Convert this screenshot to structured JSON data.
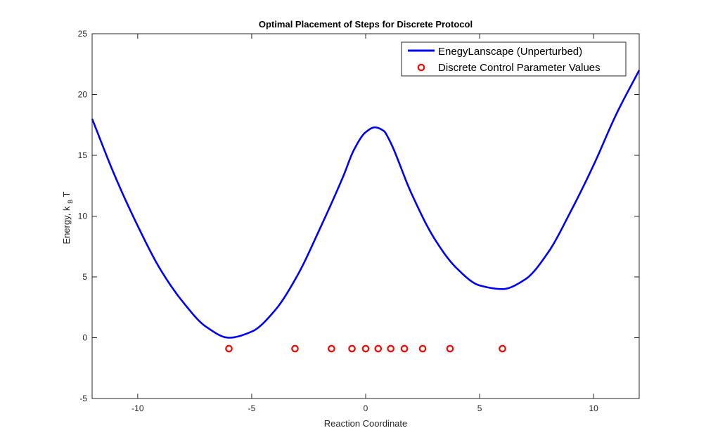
{
  "chart_data": {
    "type": "line",
    "title": "Optimal Placement of Steps for Discrete Protocol",
    "xlabel": "Reaction Coordinate",
    "ylabel": {
      "main": "Energy, k",
      "sub": "B",
      "tail": " T"
    },
    "xlim": [
      -12,
      12
    ],
    "ylim": [
      -5,
      25
    ],
    "xticks": [
      -10,
      -5,
      0,
      5,
      10
    ],
    "yticks": [
      -5,
      0,
      5,
      10,
      15,
      20,
      25
    ],
    "grid": false,
    "legend_position": "top-right",
    "series": [
      {
        "name": "EnegyLanscape (Unperturbed)",
        "kind": "line",
        "color": "#0000ff",
        "x": [
          -12,
          -11,
          -10,
          -9,
          -8,
          -7,
          -6,
          -5,
          -4,
          -3,
          -2,
          -1,
          -0.5,
          0,
          0.4,
          0.8,
          1,
          2,
          3,
          4,
          5,
          6,
          7,
          8,
          9,
          10,
          11,
          12
        ],
        "y": [
          18,
          13.3,
          9.2,
          5.6,
          2.9,
          0.9,
          0,
          0.5,
          2.2,
          5.1,
          9.0,
          13.2,
          15.5,
          16.9,
          17.3,
          17.0,
          16.4,
          11.9,
          8.2,
          5.7,
          4.3,
          4.0,
          4.8,
          7.0,
          10.4,
          14.2,
          18.4,
          22
        ]
      },
      {
        "name": "Discrete Control Parameter Values",
        "kind": "markers",
        "color": "#ff0000",
        "x": [
          -6,
          -3.1,
          -1.5,
          -0.6,
          0,
          0.55,
          1.1,
          1.7,
          2.5,
          3.7,
          6
        ],
        "y": [
          -0.9,
          -0.9,
          -0.9,
          -0.9,
          -0.9,
          -0.9,
          -0.9,
          -0.9,
          -0.9,
          -0.9,
          -0.9
        ]
      }
    ]
  }
}
